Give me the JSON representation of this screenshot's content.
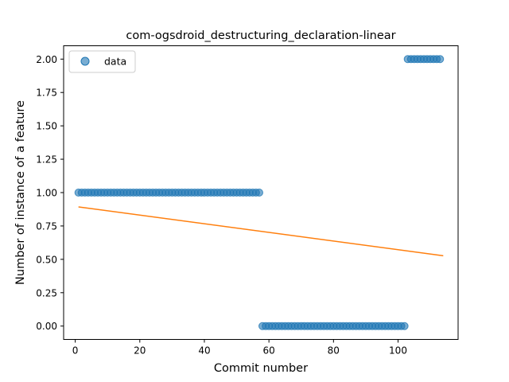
{
  "chart_data": {
    "type": "scatter",
    "title": "com-ogsdroid_destructuring_declaration-linear",
    "xlabel": "Commit number",
    "ylabel": "Number of instance of a feature",
    "xlim": [
      -3.6,
      118.6
    ],
    "ylim": [
      -0.1,
      2.1
    ],
    "xticks": [
      0,
      20,
      40,
      60,
      80,
      100
    ],
    "yticks": [
      0.0,
      0.25,
      0.5,
      0.75,
      1.0,
      1.25,
      1.5,
      1.75,
      2.0
    ],
    "xtick_labels": [
      "0",
      "20",
      "40",
      "60",
      "80",
      "100"
    ],
    "ytick_labels": [
      "0.00",
      "0.25",
      "0.50",
      "0.75",
      "1.00",
      "1.25",
      "1.50",
      "1.75",
      "2.00"
    ],
    "legend": {
      "position": "upper-left",
      "entries": [
        "data"
      ]
    },
    "grid": false,
    "series": [
      {
        "name": "data",
        "kind": "points",
        "color": "#1f77b4",
        "x": [
          1,
          2,
          3,
          4,
          5,
          6,
          7,
          8,
          9,
          10,
          11,
          12,
          13,
          14,
          15,
          16,
          17,
          18,
          19,
          20,
          21,
          22,
          23,
          24,
          25,
          26,
          27,
          28,
          29,
          30,
          31,
          32,
          33,
          34,
          35,
          36,
          37,
          38,
          39,
          40,
          41,
          42,
          43,
          44,
          45,
          46,
          47,
          48,
          49,
          50,
          51,
          52,
          53,
          54,
          55,
          56,
          57,
          58,
          59,
          60,
          61,
          62,
          63,
          64,
          65,
          66,
          67,
          68,
          69,
          70,
          71,
          72,
          73,
          74,
          75,
          76,
          77,
          78,
          79,
          80,
          81,
          82,
          83,
          84,
          85,
          86,
          87,
          88,
          89,
          90,
          91,
          92,
          93,
          94,
          95,
          96,
          97,
          98,
          99,
          100,
          101,
          102,
          103,
          104,
          105,
          106,
          107,
          108,
          109,
          110,
          111,
          112,
          113
        ],
        "y": [
          1,
          1,
          1,
          1,
          1,
          1,
          1,
          1,
          1,
          1,
          1,
          1,
          1,
          1,
          1,
          1,
          1,
          1,
          1,
          1,
          1,
          1,
          1,
          1,
          1,
          1,
          1,
          1,
          1,
          1,
          1,
          1,
          1,
          1,
          1,
          1,
          1,
          1,
          1,
          1,
          1,
          1,
          1,
          1,
          1,
          1,
          1,
          1,
          1,
          1,
          1,
          1,
          1,
          1,
          1,
          1,
          1,
          0,
          0,
          0,
          0,
          0,
          0,
          0,
          0,
          0,
          0,
          0,
          0,
          0,
          0,
          0,
          0,
          0,
          0,
          0,
          0,
          0,
          0,
          0,
          0,
          0,
          0,
          0,
          0,
          0,
          0,
          0,
          0,
          0,
          0,
          0,
          0,
          0,
          0,
          0,
          0,
          0,
          0,
          0,
          0,
          0,
          2,
          2,
          2,
          2,
          2,
          2,
          2,
          2,
          2,
          2,
          2
        ]
      },
      {
        "name": "",
        "kind": "fit-line",
        "color": "#ff7f0e",
        "x": [
          1,
          114
        ],
        "y": [
          0.893,
          0.527
        ]
      }
    ]
  }
}
